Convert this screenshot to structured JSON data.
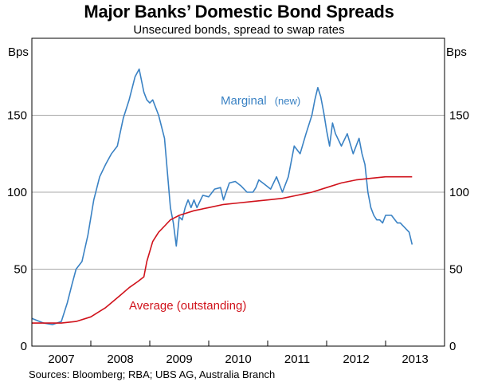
{
  "chart_data": {
    "type": "line",
    "title": "Major Banks’ Domestic Bond Spreads",
    "subtitle": "Unsecured bonds, spread to swap rates",
    "ylabel_left": "Bps",
    "ylabel_right": "Bps",
    "ylim": [
      0,
      200
    ],
    "yticks": [
      0,
      50,
      100,
      150
    ],
    "xlim": [
      2006.5,
      2013.5
    ],
    "x_tick_labels": [
      "2007",
      "2008",
      "2009",
      "2010",
      "2011",
      "2012",
      "2013"
    ],
    "grid": true,
    "source": "Sources: Bloomberg; RBA; UBS AG, Australia Branch",
    "series": [
      {
        "name": "Marginal",
        "name_suffix": "(new)",
        "color": "#3a82c4",
        "x": [
          2006.5,
          2006.7,
          2006.85,
          2007.0,
          2007.1,
          2007.18,
          2007.25,
          2007.35,
          2007.45,
          2007.55,
          2007.65,
          2007.75,
          2007.85,
          2007.95,
          2008.05,
          2008.15,
          2008.25,
          2008.32,
          2008.4,
          2008.45,
          2008.5,
          2008.55,
          2008.6,
          2008.65,
          2008.75,
          2008.85,
          2008.9,
          2008.95,
          2009.0,
          2009.05,
          2009.1,
          2009.15,
          2009.2,
          2009.25,
          2009.3,
          2009.4,
          2009.5,
          2009.6,
          2009.7,
          2009.75,
          2009.85,
          2009.95,
          2010.05,
          2010.15,
          2010.25,
          2010.3,
          2010.35,
          2010.45,
          2010.55,
          2010.65,
          2010.75,
          2010.85,
          2010.95,
          2011.05,
          2011.15,
          2011.25,
          2011.3,
          2011.35,
          2011.4,
          2011.45,
          2011.5,
          2011.55,
          2011.6,
          2011.65,
          2011.75,
          2011.85,
          2011.95,
          2012.05,
          2012.1,
          2012.15,
          2012.2,
          2012.25,
          2012.3,
          2012.35,
          2012.4,
          2012.45,
          2012.5,
          2012.6,
          2012.7,
          2012.75,
          2012.85,
          2012.9,
          2012.95
        ],
        "values": [
          18,
          15,
          14,
          16,
          28,
          40,
          50,
          55,
          72,
          95,
          110,
          118,
          125,
          130,
          148,
          160,
          175,
          180,
          165,
          160,
          158,
          160,
          155,
          150,
          135,
          90,
          80,
          65,
          84,
          82,
          90,
          95,
          90,
          95,
          90,
          98,
          97,
          102,
          103,
          95,
          106,
          107,
          104,
          100,
          100,
          103,
          108,
          105,
          102,
          110,
          100,
          110,
          130,
          125,
          138,
          150,
          160,
          168,
          162,
          152,
          140,
          130,
          145,
          138,
          130,
          138,
          125,
          135,
          125,
          118,
          100,
          90,
          85,
          82,
          82,
          80,
          85,
          85,
          80,
          80,
          76,
          74,
          66
        ]
      },
      {
        "name": "Average",
        "name_suffix": "(outstanding)",
        "color": "#d0121b",
        "x": [
          2006.5,
          2006.75,
          2007.0,
          2007.25,
          2007.5,
          2007.75,
          2008.0,
          2008.15,
          2008.3,
          2008.4,
          2008.45,
          2008.55,
          2008.65,
          2008.75,
          2008.85,
          2009.0,
          2009.25,
          2009.5,
          2009.75,
          2010.0,
          2010.25,
          2010.5,
          2010.75,
          2011.0,
          2011.25,
          2011.5,
          2011.75,
          2012.0,
          2012.25,
          2012.5,
          2012.75,
          2012.95
        ],
        "values": [
          15,
          15,
          15,
          16,
          19,
          25,
          33,
          38,
          42,
          45,
          55,
          68,
          74,
          78,
          82,
          85,
          88,
          90,
          92,
          93,
          94,
          95,
          96,
          98,
          100,
          103,
          106,
          108,
          109,
          110,
          110,
          110
        ]
      }
    ],
    "annotations": [
      {
        "series": "Marginal",
        "text": "Marginal",
        "suffix": "(new)"
      },
      {
        "series": "Average",
        "text": "Average (outstanding)"
      }
    ]
  }
}
